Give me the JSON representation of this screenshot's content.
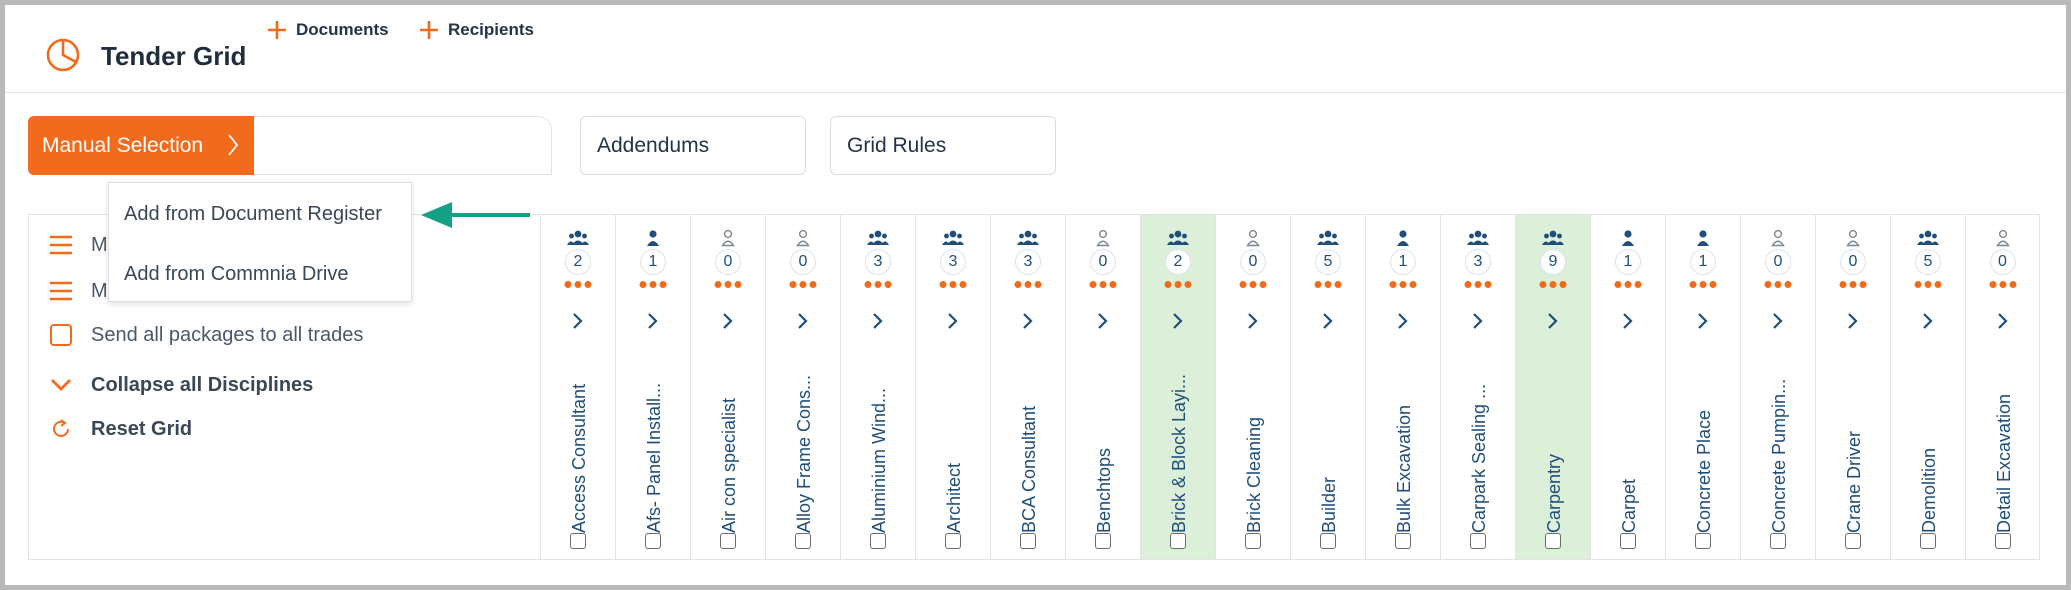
{
  "app": {
    "title": "Tender Grid"
  },
  "toolbar": {
    "manual_selection": "Manual Selection",
    "documents": "Documents",
    "recipients": "Recipients",
    "addendums": "Addendums",
    "grid_rules": "Grid Rules"
  },
  "dropdown": {
    "items": [
      "Add from Document Register",
      "Add from Commnia Drive"
    ]
  },
  "left_panel": {
    "row1_label": "M",
    "row2_label": "M",
    "send_all": "Send all packages to all trades",
    "collapse": "Collapse all Disciplines",
    "reset": "Reset Grid"
  },
  "colors": {
    "accent": "#f26a1b",
    "highlight": "#dcefd9",
    "arrow": "#14a085",
    "text_blue": "#1f4e79"
  },
  "trades": [
    {
      "name": "Access Consultant",
      "count": "2",
      "icon": "group-icon",
      "highlighted": false
    },
    {
      "name": "Afs- Panel Install...",
      "count": "1",
      "icon": "person-icon",
      "highlighted": false
    },
    {
      "name": "Air con specialist",
      "count": "0",
      "icon": "person-outline-icon",
      "highlighted": false
    },
    {
      "name": "Alloy Frame Cons...",
      "count": "0",
      "icon": "person-outline-icon",
      "highlighted": false
    },
    {
      "name": "Aluminium Wind...",
      "count": "3",
      "icon": "group-icon",
      "highlighted": false
    },
    {
      "name": "Architect",
      "count": "3",
      "icon": "group-icon",
      "highlighted": false
    },
    {
      "name": "BCA Consultant",
      "count": "3",
      "icon": "group-icon",
      "highlighted": false
    },
    {
      "name": "Benchtops",
      "count": "0",
      "icon": "person-outline-icon",
      "highlighted": false
    },
    {
      "name": "Brick & Block Layi...",
      "count": "2",
      "icon": "group-icon",
      "highlighted": true
    },
    {
      "name": "Brick Cleaning",
      "count": "0",
      "icon": "person-outline-icon",
      "highlighted": false
    },
    {
      "name": "Builder",
      "count": "5",
      "icon": "group-icon",
      "highlighted": false
    },
    {
      "name": "Bulk Excavation",
      "count": "1",
      "icon": "person-icon",
      "highlighted": false
    },
    {
      "name": "Carpark Sealing ...",
      "count": "3",
      "icon": "group-icon",
      "highlighted": false
    },
    {
      "name": "Carpentry",
      "count": "9",
      "icon": "group-icon",
      "highlighted": true
    },
    {
      "name": "Carpet",
      "count": "1",
      "icon": "person-icon",
      "highlighted": false
    },
    {
      "name": "Concrete Place",
      "count": "1",
      "icon": "person-icon",
      "highlighted": false
    },
    {
      "name": "Concrete Pumpin...",
      "count": "0",
      "icon": "person-outline-icon",
      "highlighted": false
    },
    {
      "name": "Crane Driver",
      "count": "0",
      "icon": "person-outline-icon",
      "highlighted": false
    },
    {
      "name": "Demolition",
      "count": "5",
      "icon": "group-icon",
      "highlighted": false
    },
    {
      "name": "Detail Excavation",
      "count": "0",
      "icon": "person-outline-icon",
      "highlighted": false
    }
  ]
}
